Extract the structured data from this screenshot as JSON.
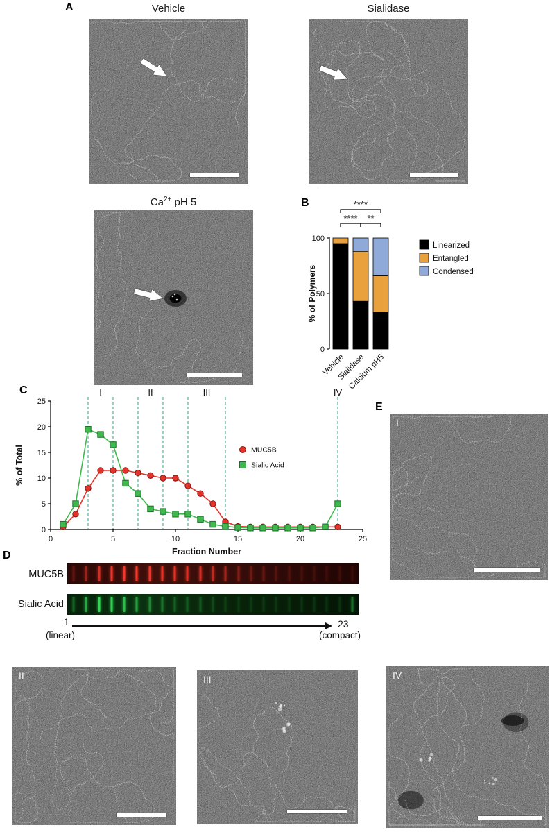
{
  "panels": {
    "a": {
      "label": "A",
      "images": [
        {
          "title": "Vehicle"
        },
        {
          "title": "Sialidase"
        },
        {
          "title_main": "Ca",
          "title_sup": "2+",
          "title_rest": " pH 5"
        }
      ]
    },
    "b": {
      "label": "B"
    },
    "c": {
      "label": "C"
    },
    "d": {
      "label": "D",
      "rows": [
        {
          "label": "MUC5B"
        },
        {
          "label": "Sialic Acid"
        }
      ],
      "axis": {
        "start": "1",
        "end": "23",
        "start_note": "(linear)",
        "end_note": "(compact)"
      }
    },
    "e": {
      "label": "E",
      "images": [
        {
          "label": "I"
        },
        {
          "label": "II"
        },
        {
          "label": "III"
        },
        {
          "label": "IV"
        }
      ]
    }
  },
  "chart_data": [
    {
      "id": "polymer-morphology",
      "type": "bar",
      "stacked": true,
      "categories": [
        "Vehicle",
        "Sialidase",
        "Calcium pH5"
      ],
      "series": [
        {
          "name": "Linearized",
          "color": "#000000",
          "values": [
            95,
            43,
            33
          ]
        },
        {
          "name": "Entangled",
          "color": "#E9A13E",
          "values": [
            5,
            45,
            33
          ]
        },
        {
          "name": "Condensed",
          "color": "#8FAAD9",
          "values": [
            0,
            12,
            34
          ]
        }
      ],
      "ylabel": "% of Polymers",
      "ylim": [
        0,
        100
      ],
      "yticks": [
        0,
        50,
        100
      ],
      "legend_position": "right",
      "significance": [
        {
          "from": 0,
          "to": 2,
          "label": "****",
          "level": 0
        },
        {
          "from": 0,
          "to": 1,
          "label": "****",
          "level": 1
        },
        {
          "from": 1,
          "to": 2,
          "label": "**",
          "level": 1
        }
      ]
    },
    {
      "id": "fraction-profile",
      "type": "line",
      "title": "",
      "xlabel": "Fraction Number",
      "ylabel": "% of Total",
      "xlim": [
        0,
        25
      ],
      "ylim": [
        0,
        25
      ],
      "xticks": [
        0,
        5,
        10,
        15,
        20,
        25
      ],
      "yticks": [
        0,
        5,
        10,
        15,
        20,
        25
      ],
      "x": [
        1,
        2,
        3,
        4,
        5,
        6,
        7,
        8,
        9,
        10,
        11,
        12,
        13,
        14,
        15,
        16,
        17,
        18,
        19,
        20,
        21,
        22,
        23
      ],
      "series": [
        {
          "name": "MUC5B",
          "marker": "circle",
          "color": "#E5332A",
          "values": [
            0.5,
            3,
            8,
            11.5,
            11.5,
            11.5,
            11,
            10.5,
            10,
            10,
            8.5,
            7,
            5,
            1.5,
            0.6,
            0.5,
            0.5,
            0.5,
            0.5,
            0.5,
            0.5,
            0.5,
            0.5
          ]
        },
        {
          "name": "Sialic Acid",
          "marker": "square",
          "color": "#3FB94D",
          "values": [
            1,
            5,
            19.5,
            18.5,
            16.5,
            9,
            7,
            4,
            3.5,
            3,
            3,
            2,
            1,
            0.6,
            0.4,
            0.3,
            0.3,
            0.3,
            0.3,
            0.3,
            0.3,
            0.5,
            5
          ]
        }
      ],
      "vlines": {
        "x": [
          3,
          5,
          7,
          9,
          11,
          14,
          23
        ],
        "color": "#2FA784",
        "style": "dashed"
      },
      "region_labels": [
        {
          "label": "I",
          "x": 4
        },
        {
          "label": "II",
          "x": 8
        },
        {
          "label": "III",
          "x": 12.5
        },
        {
          "label": "IV",
          "x": 23
        }
      ],
      "legend_position": "inside-right",
      "grid": false
    },
    {
      "id": "gel-profile",
      "type": "heatmap",
      "fraction_count": 23,
      "rows": [
        {
          "name": "MUC5B",
          "band_color": "#FF3A2C",
          "intensities": [
            0.25,
            0.55,
            0.8,
            0.95,
            1,
            1,
            0.95,
            0.9,
            0.9,
            0.85,
            0.8,
            0.7,
            0.55,
            0.4,
            0.3,
            0.25,
            0.2,
            0.18,
            0.15,
            0.12,
            0.1,
            0.1,
            0.1
          ]
        },
        {
          "name": "Sialic Acid",
          "band_color": "#35E05A",
          "intensities": [
            0.35,
            0.75,
            1,
            0.95,
            0.85,
            0.65,
            0.5,
            0.4,
            0.3,
            0.28,
            0.25,
            0.2,
            0.15,
            0.1,
            0.08,
            0.06,
            0.06,
            0.05,
            0.05,
            0.05,
            0.05,
            0.08,
            0.45
          ]
        }
      ]
    }
  ]
}
